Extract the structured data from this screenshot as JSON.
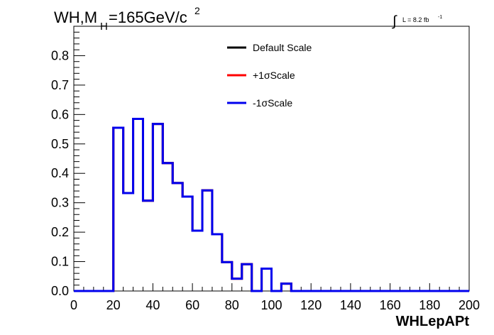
{
  "chart_data": {
    "type": "line",
    "title_main": "WH,M",
    "title_sub": "H",
    "title_rest": "=165GeV/c",
    "title_sup": "2",
    "lumi_integral": "∫",
    "lumi_text": "L = 8.2 fb",
    "lumi_sup": "-1",
    "xlabel": "WHLepAPt",
    "xlim": [
      0,
      200
    ],
    "ylim": [
      0,
      0.9
    ],
    "xticks": [
      "0",
      "20",
      "40",
      "60",
      "80",
      "100",
      "120",
      "140",
      "160",
      "180",
      "200"
    ],
    "yticks": [
      "0.0",
      "0.1",
      "0.2",
      "0.3",
      "0.4",
      "0.5",
      "0.6",
      "0.7",
      "0.8"
    ],
    "bin_width": 5,
    "bin_edges_start": 0,
    "series": [
      {
        "name": "Default Scale",
        "color": "#000000",
        "values": [
          0,
          0,
          0,
          0,
          0.555,
          0.333,
          0.585,
          0.307,
          0.568,
          0.435,
          0.367,
          0.321,
          0.205,
          0.342,
          0.193,
          0.098,
          0.042,
          0.091,
          0,
          0.076,
          0,
          0.025,
          0,
          0,
          0,
          0,
          0,
          0,
          0,
          0,
          0,
          0,
          0,
          0,
          0,
          0,
          0,
          0,
          0,
          0
        ]
      },
      {
        "name": "+1σScale",
        "color": "#ff0000",
        "values": [
          0,
          0,
          0,
          0,
          0.555,
          0.333,
          0.585,
          0.307,
          0.568,
          0.435,
          0.367,
          0.321,
          0.205,
          0.342,
          0.193,
          0.098,
          0.042,
          0.091,
          0,
          0.076,
          0,
          0.025,
          0,
          0,
          0,
          0,
          0,
          0,
          0,
          0,
          0,
          0,
          0,
          0,
          0,
          0,
          0,
          0,
          0,
          0
        ]
      },
      {
        "name": "-1σScale",
        "color": "#0000ee",
        "values": [
          0,
          0,
          0,
          0,
          0.555,
          0.333,
          0.585,
          0.307,
          0.568,
          0.435,
          0.367,
          0.321,
          0.205,
          0.342,
          0.193,
          0.098,
          0.042,
          0.091,
          0,
          0.076,
          0,
          0.025,
          0,
          0,
          0,
          0,
          0,
          0,
          0,
          0,
          0,
          0,
          0,
          0,
          0,
          0,
          0,
          0,
          0,
          0
        ]
      }
    ],
    "legend_position": "top-center"
  }
}
